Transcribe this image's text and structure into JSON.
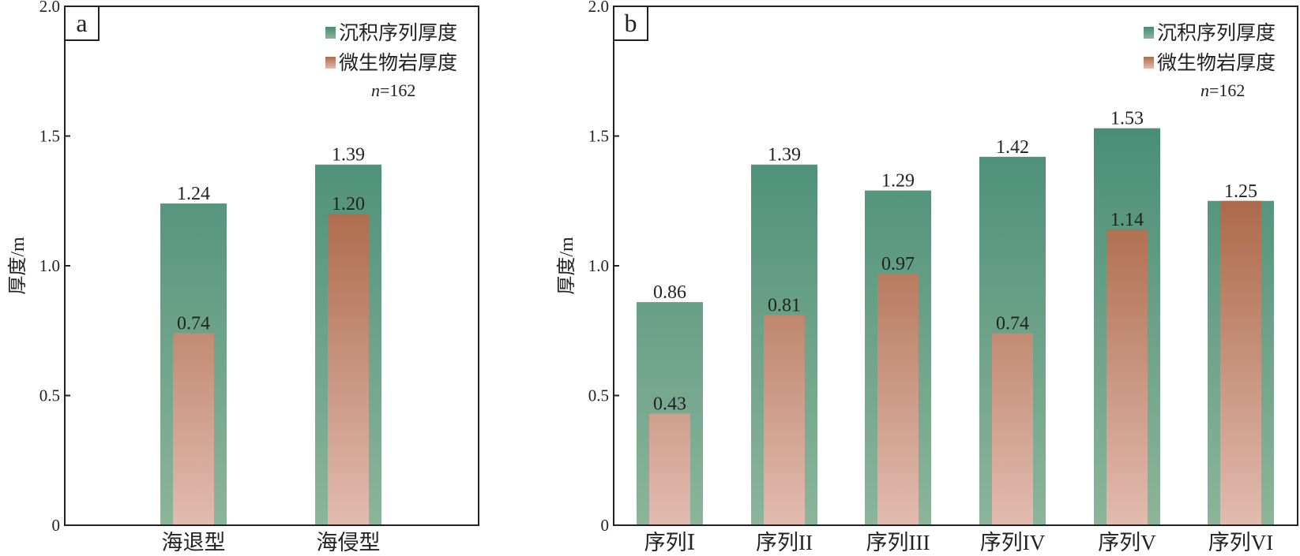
{
  "chart_data": [
    {
      "type": "bar",
      "panel_label": "a",
      "categories": [
        "海退型",
        "海侵型"
      ],
      "series": [
        {
          "name": "沉积序列厚度",
          "values": [
            1.24,
            1.39
          ],
          "labels": [
            "1.24",
            "1.39"
          ]
        },
        {
          "name": "微生物岩厚度",
          "values": [
            0.74,
            1.2
          ],
          "labels": [
            "0.74",
            "1.20"
          ]
        }
      ],
      "annotation": "162",
      "annotation_var": "n",
      "ylabel": "厚度/m",
      "xlabel": "",
      "ylim": [
        0,
        2.0
      ],
      "yticks": [
        "0",
        "0.5",
        "1.0",
        "1.5",
        "2.0"
      ],
      "legend_position": "top-right",
      "grid": false
    },
    {
      "type": "bar",
      "panel_label": "b",
      "categories": [
        "序列Ⅰ",
        "序列II",
        "序列III",
        "序列IV",
        "序列V",
        "序列VI"
      ],
      "series": [
        {
          "name": "沉积序列厚度",
          "values": [
            0.86,
            1.39,
            1.29,
            1.42,
            1.53,
            1.25
          ],
          "labels": [
            "0.86",
            "1.39",
            "1.29",
            "1.42",
            "1.53",
            "1.25"
          ]
        },
        {
          "name": "微生物岩厚度",
          "values": [
            0.43,
            0.81,
            0.97,
            0.74,
            1.14,
            1.25
          ],
          "labels": [
            "0.43",
            "0.81",
            "0.97",
            "0.74",
            "1.14",
            ""
          ]
        }
      ],
      "annotation": "162",
      "annotation_var": "n",
      "ylabel": "厚度/m",
      "xlabel": "",
      "ylim": [
        0,
        2.0
      ],
      "yticks": [
        "0",
        "0.5",
        "1.0",
        "1.5",
        "2.0"
      ],
      "legend_position": "top-right",
      "grid": false
    }
  ],
  "colors": {
    "green_top": "#478c76",
    "green_bottom": "#8cb59a",
    "orange_top": "#ad6b4b",
    "orange_bottom": "#e2bbb0"
  }
}
